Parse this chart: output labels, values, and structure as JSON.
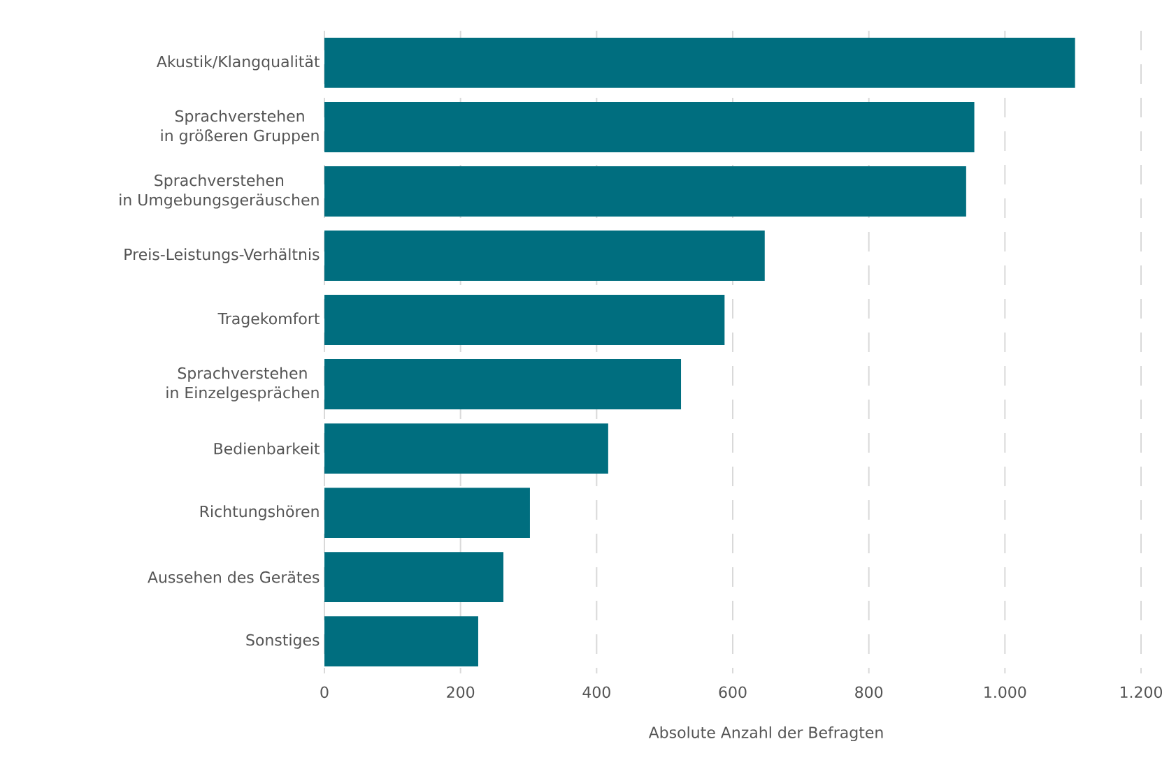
{
  "chart_data": {
    "type": "bar",
    "orientation": "horizontal",
    "xlabel": "Absolute Anzahl der Befragten",
    "categories": [
      "Akustik/Klangqualität",
      "Sprachverstehen\nin größeren Gruppen",
      "Sprachverstehen\nin Umgebungsgeräuschen",
      "Preis-Leistungs-Verhältnis",
      "Tragekomfort",
      "Sprachverstehen\nin Einzelgesprächen",
      "Bedienbarkeit",
      "Richtungshören",
      "Aussehen des Gerätes",
      "Sonstiges"
    ],
    "values": [
      1103,
      955,
      943,
      647,
      588,
      524,
      417,
      302,
      263,
      226
    ],
    "color": "#006e7f",
    "xlim": [
      0,
      1200
    ],
    "xticks": [
      0,
      200,
      400,
      600,
      800,
      {
        "value": 1000,
        "label": "1.000"
      },
      {
        "value": 1200,
        "label": "1.200"
      }
    ],
    "grid": "x"
  }
}
